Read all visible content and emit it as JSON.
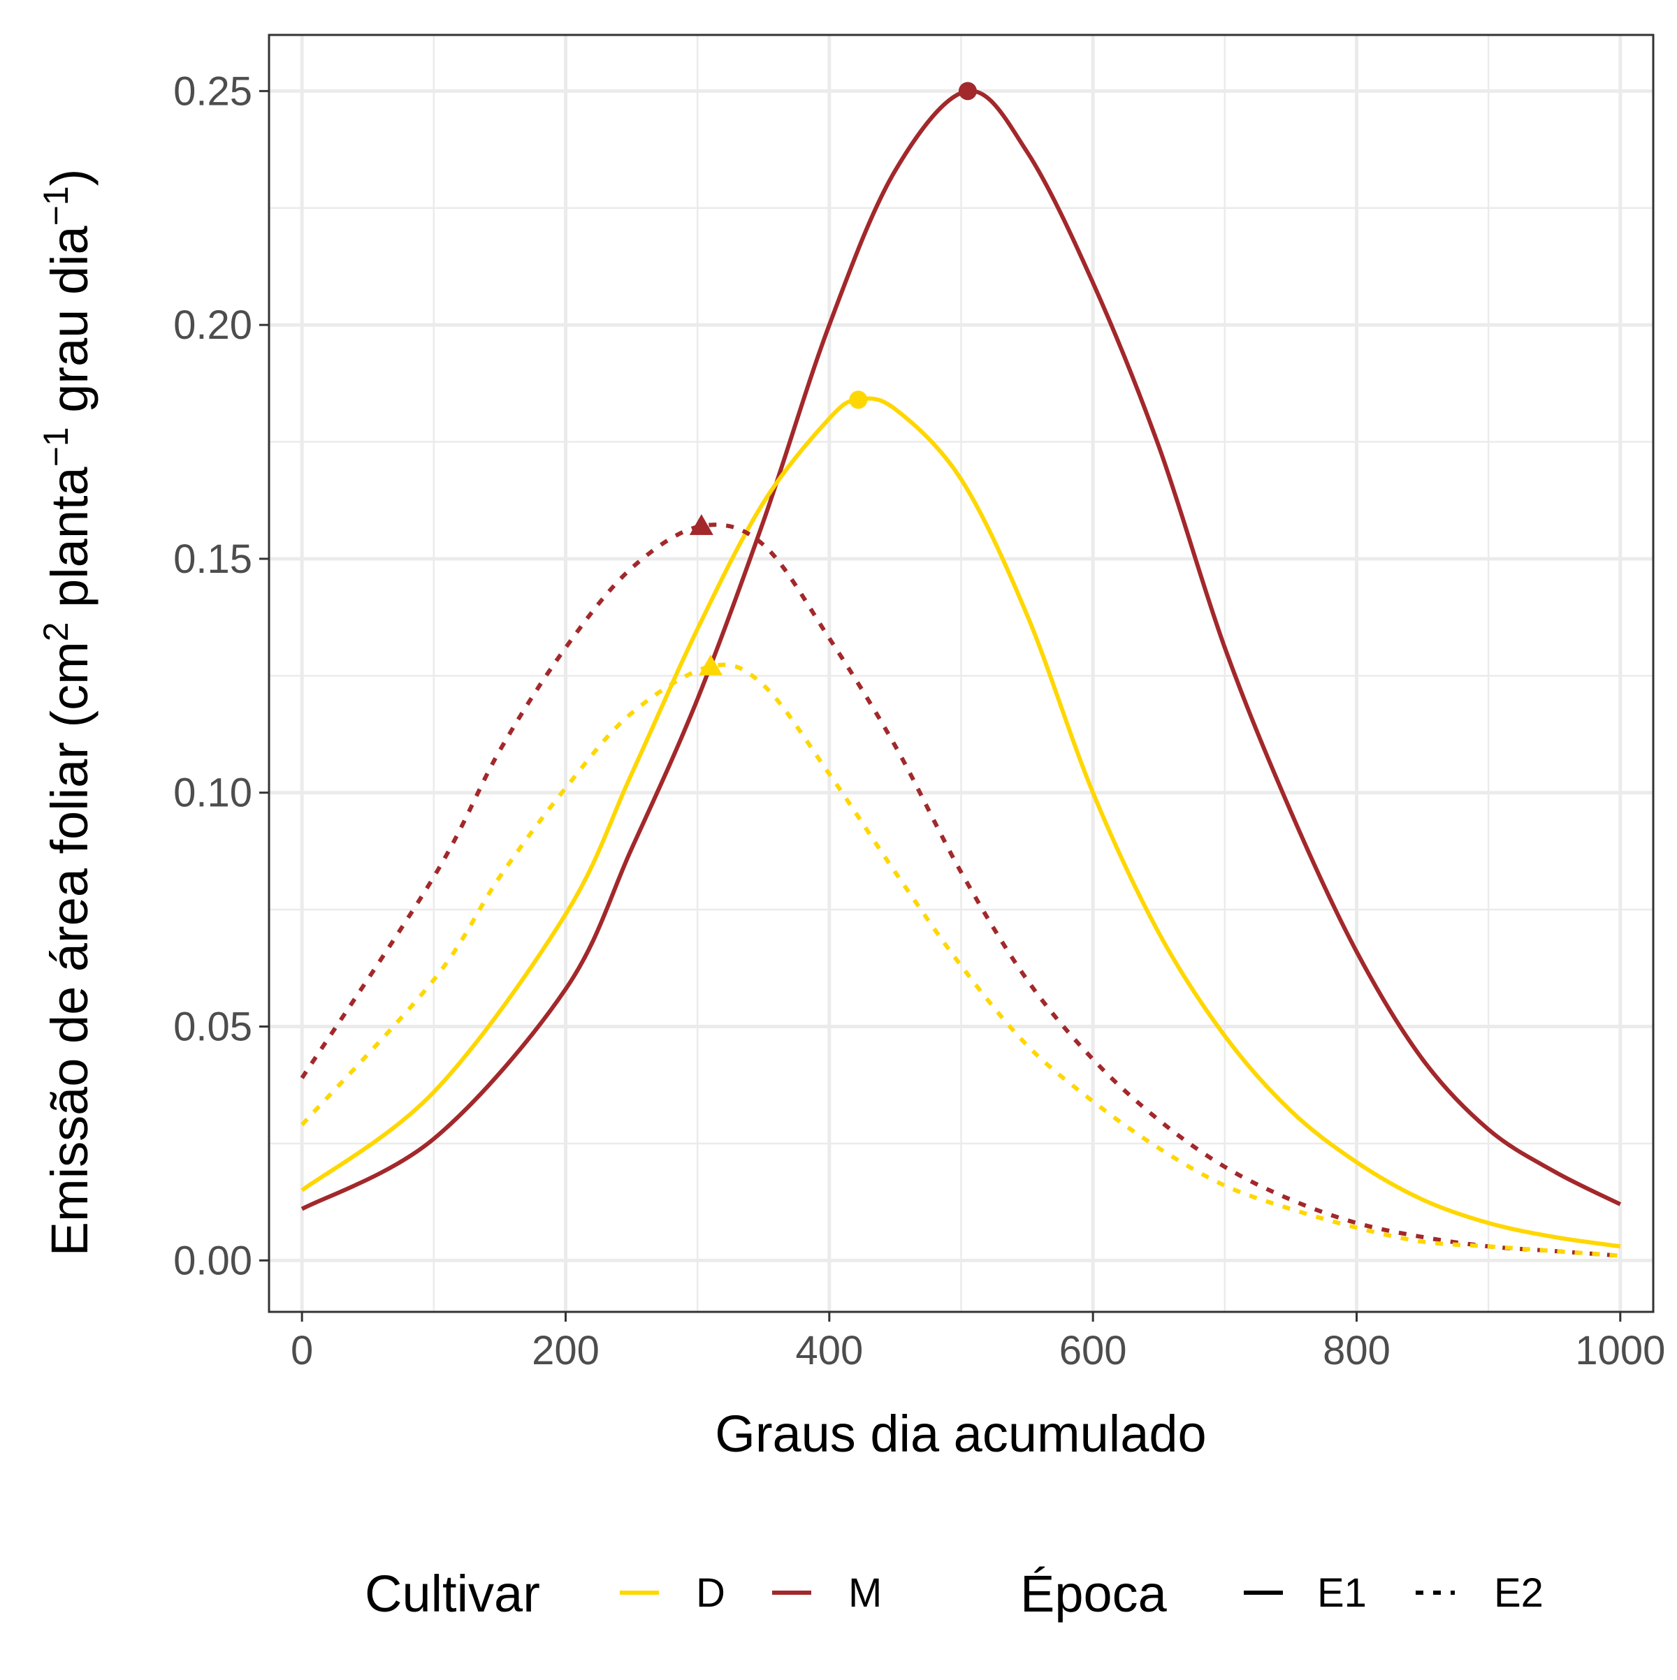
{
  "chart_data": {
    "type": "line",
    "xlabel": "Graus dia acumulado",
    "ylabel": {
      "parts": [
        "Emissão de área foliar (cm",
        "2",
        " planta",
        "−1",
        " grau dia",
        "−1",
        ")"
      ]
    },
    "xlim": [
      -25,
      1025
    ],
    "ylim": [
      -0.011,
      0.262
    ],
    "x_ticks": [
      0,
      200,
      400,
      600,
      800,
      1000
    ],
    "x_tick_labels": [
      "0",
      "200",
      "400",
      "600",
      "800",
      "1000"
    ],
    "y_ticks": [
      0.0,
      0.05,
      0.1,
      0.15,
      0.2,
      0.25
    ],
    "y_tick_labels": [
      "0.00",
      "0.05",
      "0.10",
      "0.15",
      "0.20",
      "0.25"
    ],
    "grid": true,
    "legend_position": "bottom",
    "series": [
      {
        "cultivar": "M",
        "epoca": "E1",
        "color": "#A2282B",
        "dash": "solid",
        "marker": "circle",
        "x": [
          0,
          100,
          200,
          250,
          300,
          350,
          400,
          450,
          505,
          550,
          600,
          650,
          700,
          750,
          800,
          850,
          900,
          950,
          1000
        ],
        "y": [
          0.011,
          0.026,
          0.058,
          0.088,
          0.12,
          0.158,
          0.2,
          0.233,
          0.25,
          0.237,
          0.209,
          0.174,
          0.131,
          0.096,
          0.066,
          0.043,
          0.028,
          0.019,
          0.012
        ],
        "peak": {
          "x": 505,
          "y": 0.25
        }
      },
      {
        "cultivar": "D",
        "epoca": "E1",
        "color": "#FFD700",
        "dash": "solid",
        "marker": "circle",
        "x": [
          0,
          100,
          200,
          250,
          300,
          350,
          400,
          422,
          450,
          500,
          550,
          600,
          650,
          700,
          750,
          800,
          850,
          900,
          950,
          1000
        ],
        "y": [
          0.015,
          0.036,
          0.074,
          0.104,
          0.135,
          0.162,
          0.18,
          0.184,
          0.182,
          0.167,
          0.138,
          0.1,
          0.07,
          0.048,
          0.032,
          0.021,
          0.013,
          0.008,
          0.005,
          0.003
        ],
        "peak": {
          "x": 422,
          "y": 0.184
        }
      },
      {
        "cultivar": "M",
        "epoca": "E2",
        "color": "#A2282B",
        "dash": "dotted",
        "marker": "triangle",
        "x": [
          0,
          100,
          150,
          200,
          250,
          303,
          350,
          400,
          450,
          500,
          550,
          600,
          650,
          700,
          750,
          800,
          850,
          900,
          950,
          1000
        ],
        "y": [
          0.039,
          0.082,
          0.109,
          0.131,
          0.148,
          0.157,
          0.153,
          0.133,
          0.11,
          0.083,
          0.06,
          0.043,
          0.03,
          0.02,
          0.013,
          0.008,
          0.005,
          0.003,
          0.002,
          0.001
        ],
        "peak": {
          "x": 303,
          "y": 0.157
        }
      },
      {
        "cultivar": "D",
        "epoca": "E2",
        "color": "#FFD700",
        "dash": "dotted",
        "marker": "triangle",
        "x": [
          0,
          100,
          150,
          200,
          250,
          310,
          350,
          400,
          450,
          500,
          550,
          600,
          650,
          700,
          750,
          800,
          850,
          900,
          950,
          1000
        ],
        "y": [
          0.029,
          0.06,
          0.082,
          0.101,
          0.117,
          0.127,
          0.123,
          0.104,
          0.083,
          0.063,
          0.046,
          0.034,
          0.024,
          0.016,
          0.011,
          0.007,
          0.004,
          0.003,
          0.002,
          0.001
        ],
        "peak": {
          "x": 310,
          "y": 0.127
        }
      }
    ],
    "legend": {
      "cultivar_title": "Cultivar",
      "cultivar_entries": [
        {
          "label": "D",
          "color": "#FFD700"
        },
        {
          "label": "M",
          "color": "#A2282B"
        }
      ],
      "epoca_title": "Época",
      "epoca_entries": [
        {
          "label": "E1",
          "dash": "solid"
        },
        {
          "label": "E2",
          "dash": "dotted"
        }
      ]
    }
  }
}
